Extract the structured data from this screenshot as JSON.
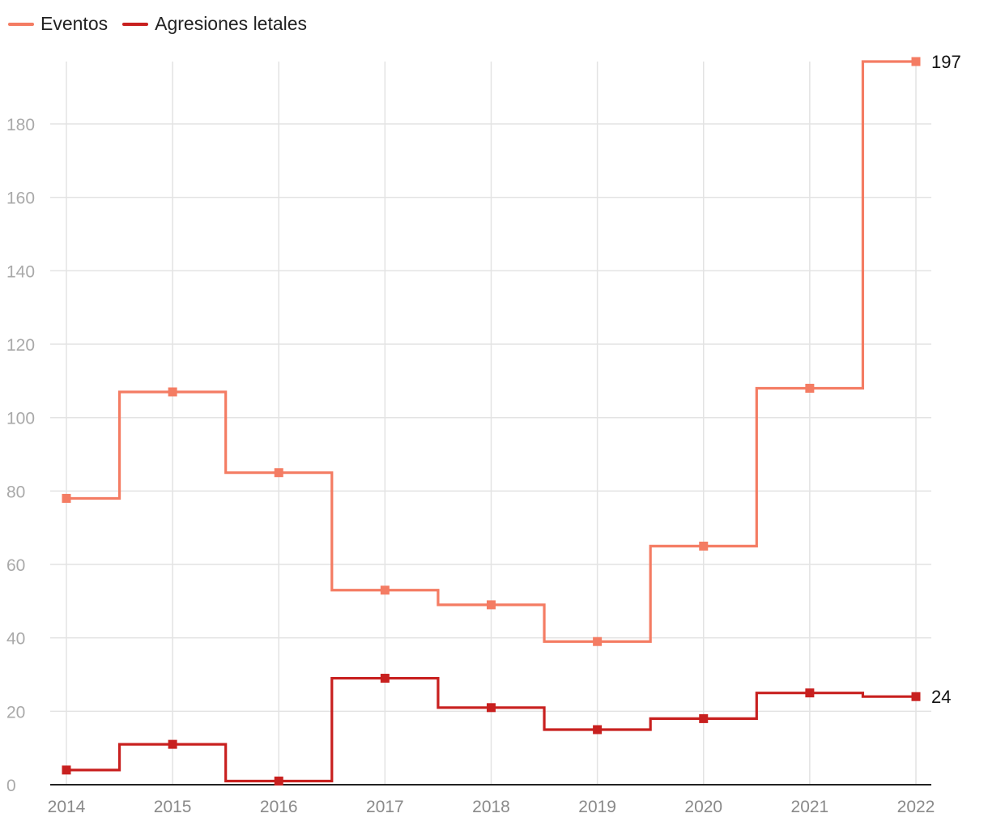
{
  "chart_data": {
    "type": "line",
    "line_shape": "step (mid)",
    "categories": [
      "2014",
      "2015",
      "2016",
      "2017",
      "2018",
      "2019",
      "2020",
      "2021",
      "2022"
    ],
    "series": [
      {
        "name": "Eventos",
        "color": "#f47c63",
        "values": [
          78,
          107,
          85,
          53,
          49,
          39,
          65,
          108,
          197
        ],
        "end_label": "197"
      },
      {
        "name": "Agresiones letales",
        "color": "#c8201f",
        "values": [
          4,
          11,
          1,
          29,
          21,
          15,
          18,
          25,
          24
        ],
        "end_label": "24"
      }
    ],
    "y_ticks": [
      "0",
      "20",
      "40",
      "60",
      "80",
      "100",
      "120",
      "140",
      "160",
      "180"
    ],
    "ylim": [
      0,
      197
    ],
    "xlabel": "",
    "ylabel": "",
    "grid": true,
    "legend_position": "top-left",
    "marker": "square"
  }
}
